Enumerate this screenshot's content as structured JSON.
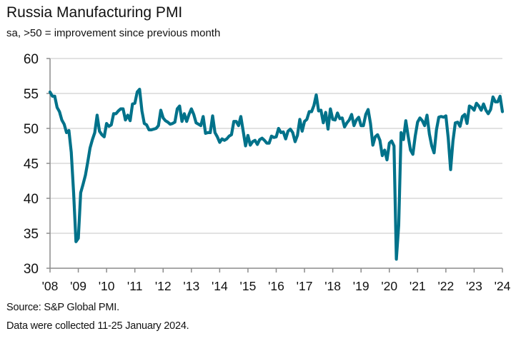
{
  "title": "Russia Manufacturing PMI",
  "subtitle": "sa, >50 = improvement since previous month",
  "source_lines": [
    "Source: S&P Global PMI.",
    "Data were collected 11-25 January 2024."
  ],
  "colors": {
    "line": "#00728A",
    "grid": "#d9d9d9",
    "axis": "#8c8c8c"
  },
  "chart_data": {
    "type": "line",
    "title": "Russia Manufacturing PMI",
    "subtitle": "sa, >50 = improvement since previous month",
    "xlabel": "",
    "ylabel": "",
    "ylim": [
      30,
      60
    ],
    "yticks": [
      30,
      35,
      40,
      45,
      50,
      55,
      60
    ],
    "xlim": [
      2008,
      2024
    ],
    "xticks": [
      "'08",
      "'09",
      "'10",
      "'11",
      "'12",
      "'13",
      "'14",
      "'15",
      "'16",
      "'17",
      "'18",
      "'19",
      "'20",
      "'21",
      "'22",
      "'23",
      "'24"
    ],
    "grid": "horizontal",
    "legend": "none",
    "x_start": "2008-01",
    "frequency": "monthly",
    "series": [
      {
        "name": "Russia Manufacturing PMI",
        "values": [
          55.2,
          54.6,
          54.6,
          53.0,
          52.4,
          51.2,
          50.6,
          49.4,
          49.7,
          46.6,
          40.8,
          33.8,
          34.3,
          40.8,
          42.0,
          43.3,
          45.2,
          47.2,
          48.4,
          49.4,
          51.9,
          49.6,
          49.1,
          48.8,
          50.7,
          50.3,
          50.5,
          52.1,
          52.1,
          52.5,
          52.8,
          52.8,
          51.2,
          51.9,
          51.1,
          53.5,
          53.6,
          55.2,
          55.6,
          52.5,
          50.7,
          50.5,
          49.8,
          49.8,
          49.9,
          50.0,
          50.4,
          52.6,
          51.5,
          51.1,
          50.9,
          50.6,
          50.7,
          50.9,
          52.8,
          53.2,
          51.0,
          52.1,
          51.0,
          52.0,
          52.8,
          52.0,
          50.8,
          50.6,
          50.4,
          51.7,
          49.3,
          49.4,
          49.4,
          51.8,
          49.4,
          48.8,
          48.0,
          48.5,
          48.3,
          48.5,
          48.9,
          49.1,
          51.0,
          51.0,
          50.4,
          51.7,
          49.6,
          47.5,
          49.0,
          47.6,
          48.1,
          48.3,
          47.7,
          48.4,
          48.6,
          48.3,
          47.9,
          47.9,
          48.9,
          48.7,
          48.8,
          50.0,
          49.4,
          49.5,
          48.5,
          49.6,
          49.9,
          49.4,
          48.1,
          49.0,
          51.3,
          49.6,
          51.0,
          51.3,
          52.4,
          52.4,
          53.3,
          54.8,
          52.5,
          52.6,
          50.8,
          52.3,
          49.9,
          52.8,
          51.3,
          51.2,
          52.2,
          51.4,
          51.5,
          50.2,
          50.8,
          51.2,
          52.0,
          50.4,
          51.2,
          51.6,
          50.4,
          50.4,
          52.0,
          52.7,
          50.7,
          47.6,
          48.8,
          49.1,
          48.3,
          46.1,
          46.9,
          45.5,
          47.9,
          48.2,
          47.5,
          31.3,
          36.2,
          49.4,
          48.4,
          51.1,
          48.9,
          46.9,
          46.3,
          48.9,
          50.9,
          51.5,
          51.1,
          50.4,
          51.9,
          49.2,
          47.5,
          46.5,
          49.8,
          51.6,
          51.7,
          51.6,
          51.8,
          48.6,
          44.1,
          48.2,
          50.8,
          50.9,
          50.3,
          51.7,
          52.0,
          50.7,
          53.2,
          53.0,
          52.6,
          53.6,
          53.2,
          52.6,
          53.5,
          52.6,
          52.1,
          52.7,
          54.5,
          53.8,
          53.8,
          54.6,
          52.4
        ]
      }
    ]
  }
}
